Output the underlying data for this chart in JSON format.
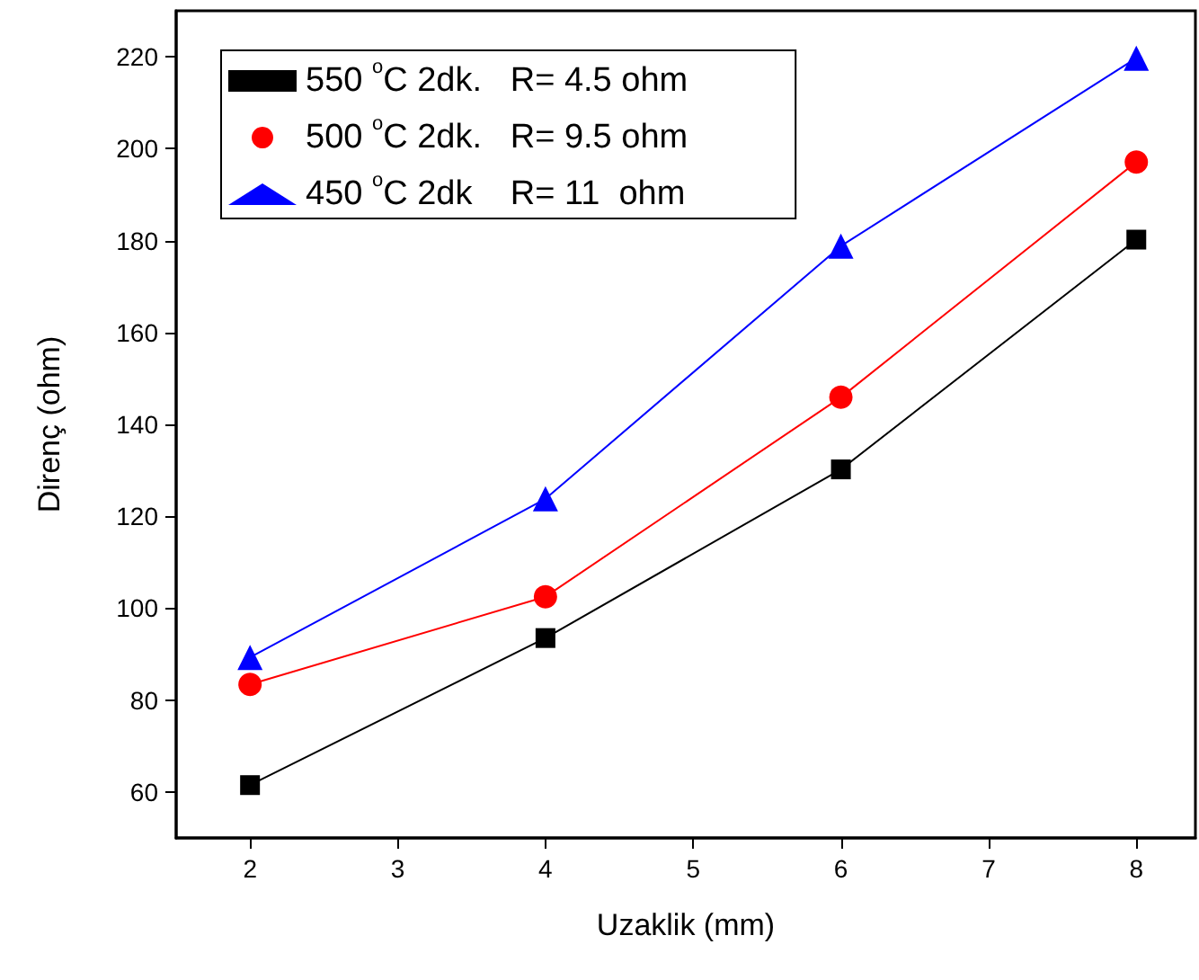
{
  "chart_data": {
    "type": "line",
    "xlabel": "Uzaklik (mm)",
    "ylabel": "Direnç (ohm)",
    "x": [
      2,
      4,
      6,
      8
    ],
    "series": [
      {
        "name": "550 $^{o}$C 2dk.   R= 4.5 ohm",
        "color": "#000000",
        "marker": "square",
        "values": [
          61.5,
          93.5,
          130.2,
          180.2
        ]
      },
      {
        "name": "500 $^{o}$C 2dk.   R= 9.5 ohm",
        "color": "#ff0000",
        "marker": "circle",
        "values": [
          83.4,
          102.5,
          145.9,
          197.1
        ]
      },
      {
        "name": "450 $^{o}$C 2dk    R= 11  ohm",
        "color": "#0000ff",
        "marker": "triangle",
        "values": [
          89.3,
          123.8,
          178.8,
          219.7
        ]
      }
    ],
    "xlim": [
      1.5,
      8.4
    ],
    "xticks": [
      2,
      3,
      4,
      5,
      6,
      7,
      8
    ],
    "ylim": [
      50,
      230
    ],
    "yticks": [
      60,
      80,
      100,
      120,
      140,
      160,
      180,
      200,
      220
    ],
    "grid": false,
    "legend": "top left",
    "line_style": "solid"
  }
}
